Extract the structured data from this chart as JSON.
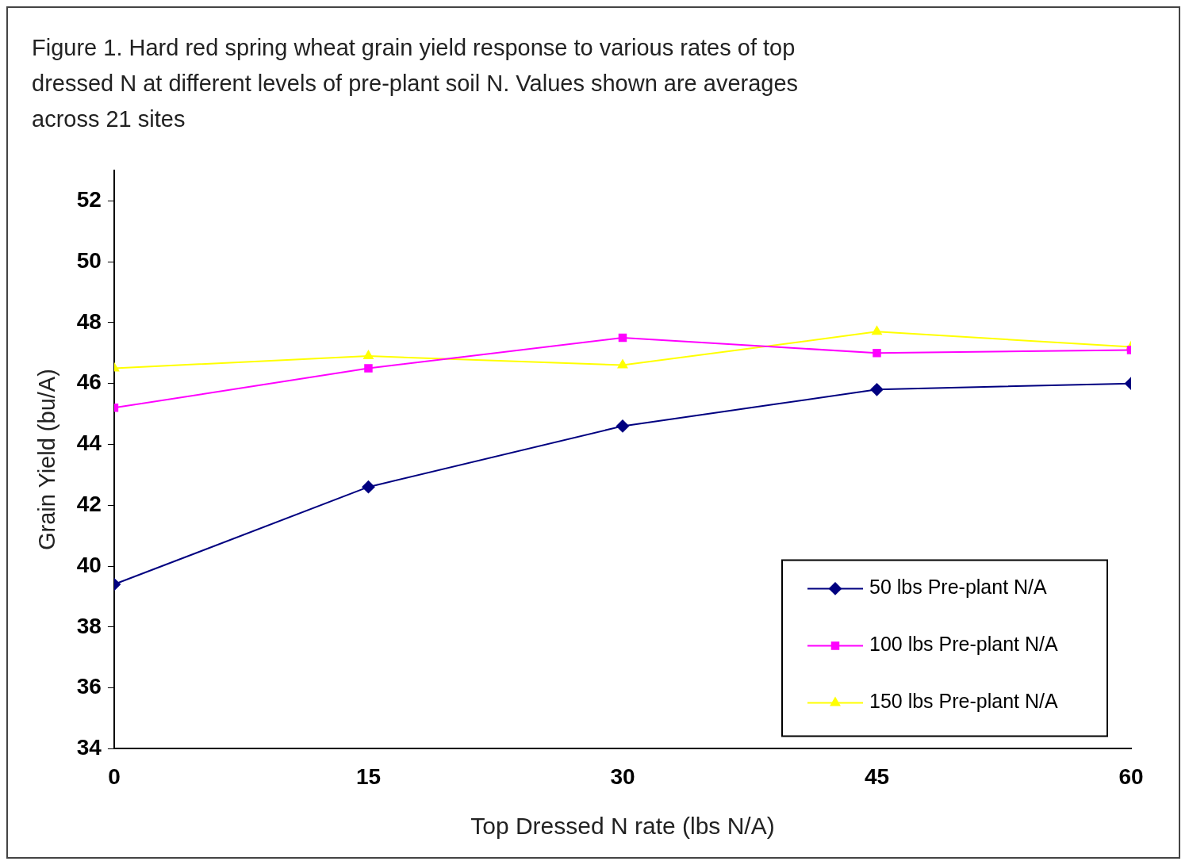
{
  "chart_data": {
    "type": "line",
    "title": [
      "Figure 1. Hard red spring wheat grain yield response to various rates of top",
      "dressed N at different levels of pre-plant soil N. Values shown are averages",
      "across 21 sites"
    ],
    "xlabel": "Top Dressed N rate (lbs N/A)",
    "ylabel": "Grain Yield (bu/A)",
    "x": [
      0,
      15,
      30,
      45,
      60
    ],
    "series": [
      {
        "name": "50 lbs Pre-plant N/A",
        "color": "#000080",
        "marker": "diamond",
        "values": [
          39.4,
          42.6,
          44.6,
          45.8,
          46.0
        ]
      },
      {
        "name": "100 lbs Pre-plant N/A",
        "color": "#ff00ff",
        "marker": "square",
        "values": [
          45.2,
          46.5,
          47.5,
          47.0,
          47.1
        ]
      },
      {
        "name": "150 lbs Pre-plant N/A",
        "color": "#ffff00",
        "marker": "triangle",
        "values": [
          46.5,
          46.9,
          46.6,
          47.7,
          47.2
        ]
      }
    ],
    "xlim": [
      0,
      60
    ],
    "xticks": [
      0,
      15,
      30,
      45,
      60
    ],
    "ylim": [
      34,
      53
    ],
    "yticks": [
      34,
      36,
      38,
      40,
      42,
      44,
      46,
      48,
      50,
      52
    ],
    "grid": false,
    "legend": "bottom right",
    "line_style": "solid"
  }
}
